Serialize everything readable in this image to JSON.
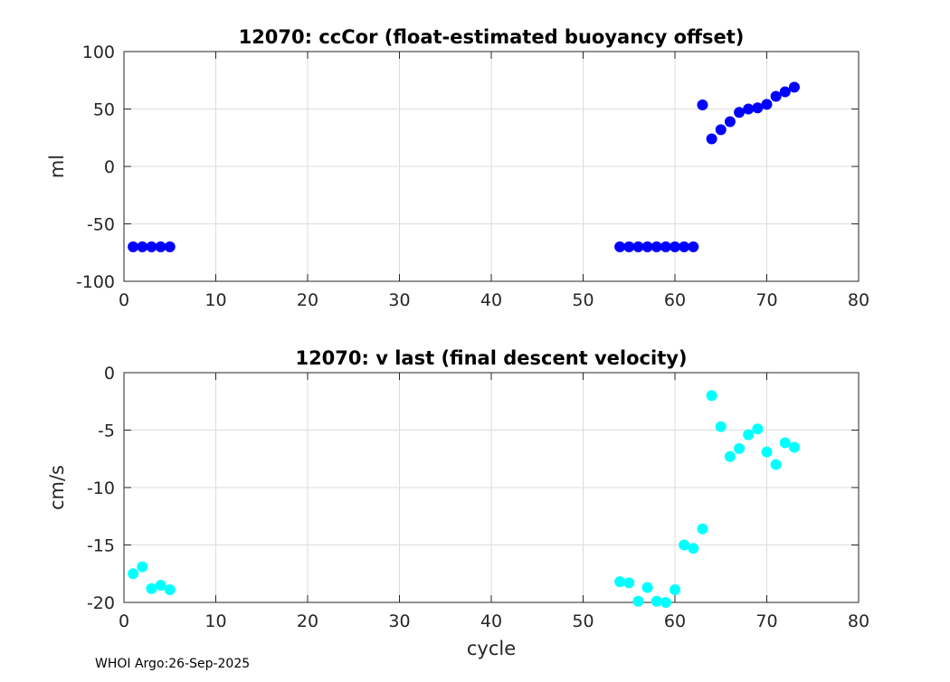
{
  "footer": "WHOI Argo:26-Sep-2025",
  "colors": {
    "top_marker": "#0000ff",
    "bottom_marker": "#00ffff",
    "grid": "#dcdcdc",
    "axis": "#262626"
  },
  "chart_data": [
    {
      "type": "scatter",
      "title": "12070: ccCor (float-estimated buoyancy offset)",
      "xlabel": "",
      "ylabel": "ml",
      "xlim": [
        0,
        80
      ],
      "ylim": [
        -100,
        100
      ],
      "xticks": [
        "0",
        "10",
        "20",
        "30",
        "40",
        "50",
        "60",
        "70",
        "80"
      ],
      "yticks": [
        "-100",
        "-50",
        "0",
        "50",
        "100"
      ],
      "grid": true,
      "x": [
        1,
        2,
        3,
        4,
        5,
        54,
        55,
        56,
        57,
        58,
        59,
        60,
        61,
        62,
        63,
        64,
        65,
        66,
        67,
        68,
        69,
        70,
        71,
        72,
        73
      ],
      "y": [
        -70,
        -70,
        -70,
        -70,
        -70,
        -70,
        -70,
        -70,
        -70,
        -70,
        -70,
        -70,
        -70,
        -70,
        53.5,
        24,
        32,
        39,
        47,
        50,
        51,
        54,
        61,
        65,
        69
      ]
    },
    {
      "type": "scatter",
      "title": "12070: v last (final descent velocity)",
      "xlabel": "cycle",
      "ylabel": "cm/s",
      "xlim": [
        0,
        80
      ],
      "ylim": [
        -20,
        0
      ],
      "xticks": [
        "0",
        "10",
        "20",
        "30",
        "40",
        "50",
        "60",
        "70",
        "80"
      ],
      "yticks": [
        "-20",
        "-15",
        "-10",
        "-5",
        "0"
      ],
      "grid": true,
      "x": [
        1,
        2,
        3,
        4,
        5,
        54,
        55,
        56,
        57,
        58,
        59,
        60,
        61,
        62,
        63,
        64,
        65,
        66,
        67,
        68,
        69,
        70,
        71,
        72,
        73
      ],
      "y": [
        -17.5,
        -16.9,
        -18.8,
        -18.5,
        -18.9,
        -18.2,
        -18.3,
        -19.9,
        -18.7,
        -19.9,
        -20.0,
        -18.9,
        -15.0,
        -15.3,
        -13.6,
        -2.0,
        -4.7,
        -7.3,
        -6.6,
        -5.4,
        -4.9,
        -6.9,
        -8.0,
        -6.1,
        -6.5
      ]
    }
  ]
}
